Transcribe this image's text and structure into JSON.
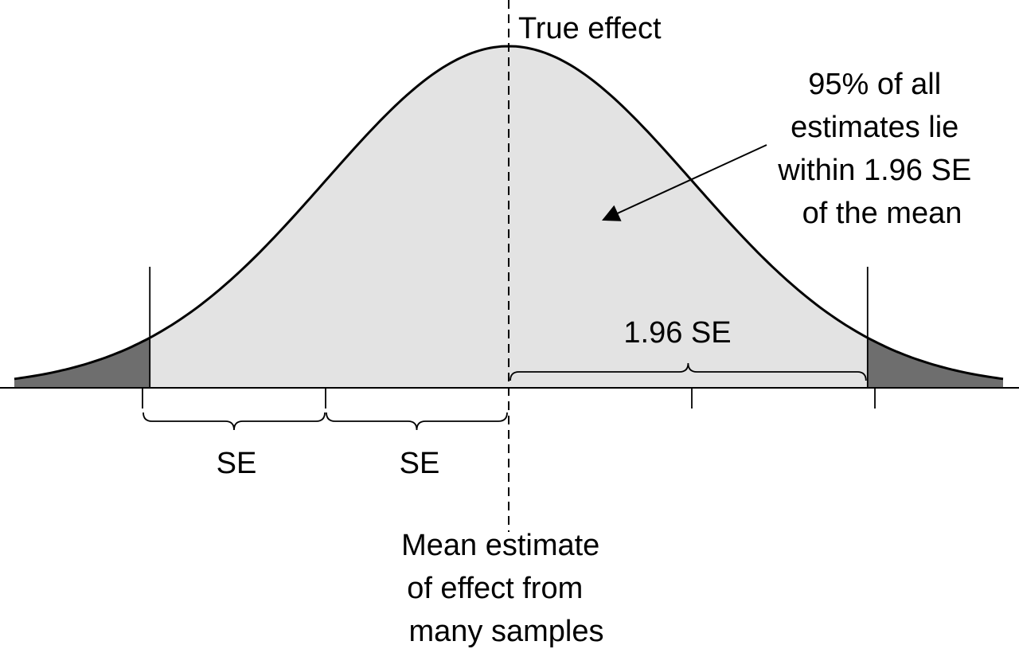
{
  "labels": {
    "true_effect": "True effect",
    "annotation_lines": [
      "95% of all",
      "estimates lie",
      "within 1.96 SE",
      "of the mean"
    ],
    "brace_se_1": "SE",
    "brace_se_2": "SE",
    "brace_196": "1.96 SE",
    "mean_lines": [
      "Mean estimate",
      "of effect from",
      "many samples"
    ]
  },
  "distribution": {
    "type": "normal",
    "mean": 0,
    "sd": 1,
    "axis_range_sd": [
      -2.7,
      2.7
    ],
    "tick_marks_sd": [
      -2,
      -1,
      1,
      2
    ],
    "central_region_sd": [
      -1.96,
      1.96
    ],
    "central_area_percent": 95
  },
  "colors": {
    "central_fill": "#e3e3e3",
    "tail_fill": "#6e6e6e",
    "stroke": "#000000",
    "background": "#ffffff"
  }
}
